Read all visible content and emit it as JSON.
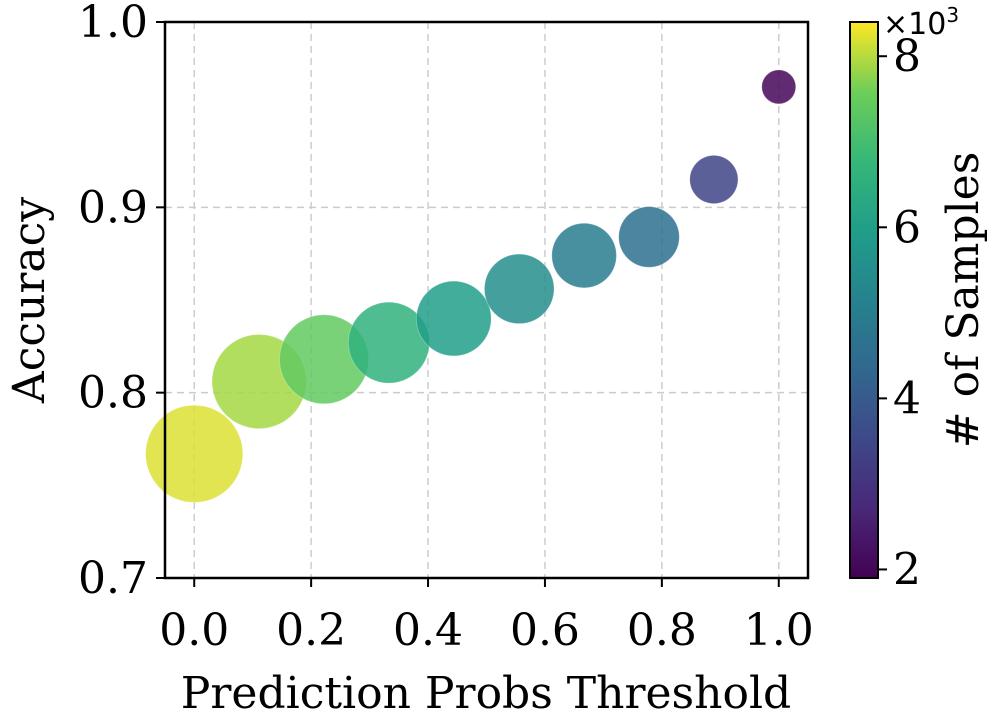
{
  "chart_data": {
    "type": "scatter",
    "title": "",
    "xlabel": "Prediction Probs Threshold",
    "ylabel": "Accuracy",
    "xlim": [
      -0.05,
      1.05
    ],
    "ylim": [
      0.7,
      1.0
    ],
    "x_ticks": [
      0.0,
      0.2,
      0.4,
      0.6,
      0.8,
      1.0
    ],
    "x_tick_labels": [
      "0.0",
      "0.2",
      "0.4",
      "0.6",
      "0.8",
      "1.0"
    ],
    "y_ticks": [
      0.7,
      0.8,
      0.9,
      1.0
    ],
    "y_tick_labels": [
      "0.7",
      "0.8",
      "0.9",
      "1.0"
    ],
    "grid": true,
    "colormap": "viridis",
    "colorbar": {
      "label": "# of Samples",
      "multiplier": "×10",
      "exponent": "3",
      "range": [
        1.9,
        8.4
      ],
      "ticks": [
        2,
        4,
        6,
        8
      ],
      "tick_labels": [
        "2",
        "4",
        "6",
        "8"
      ]
    },
    "points": [
      {
        "x": 0.0,
        "y": 0.767,
        "samples": 8.2
      },
      {
        "x": 0.111,
        "y": 0.806,
        "samples": 7.9
      },
      {
        "x": 0.222,
        "y": 0.818,
        "samples": 7.4
      },
      {
        "x": 0.333,
        "y": 0.827,
        "samples": 6.6
      },
      {
        "x": 0.444,
        "y": 0.84,
        "samples": 6.0
      },
      {
        "x": 0.556,
        "y": 0.856,
        "samples": 5.5
      },
      {
        "x": 0.667,
        "y": 0.874,
        "samples": 5.0
      },
      {
        "x": 0.778,
        "y": 0.884,
        "samples": 4.6
      },
      {
        "x": 0.889,
        "y": 0.915,
        "samples": 3.4
      },
      {
        "x": 1.0,
        "y": 0.965,
        "samples": 2.0
      }
    ]
  }
}
